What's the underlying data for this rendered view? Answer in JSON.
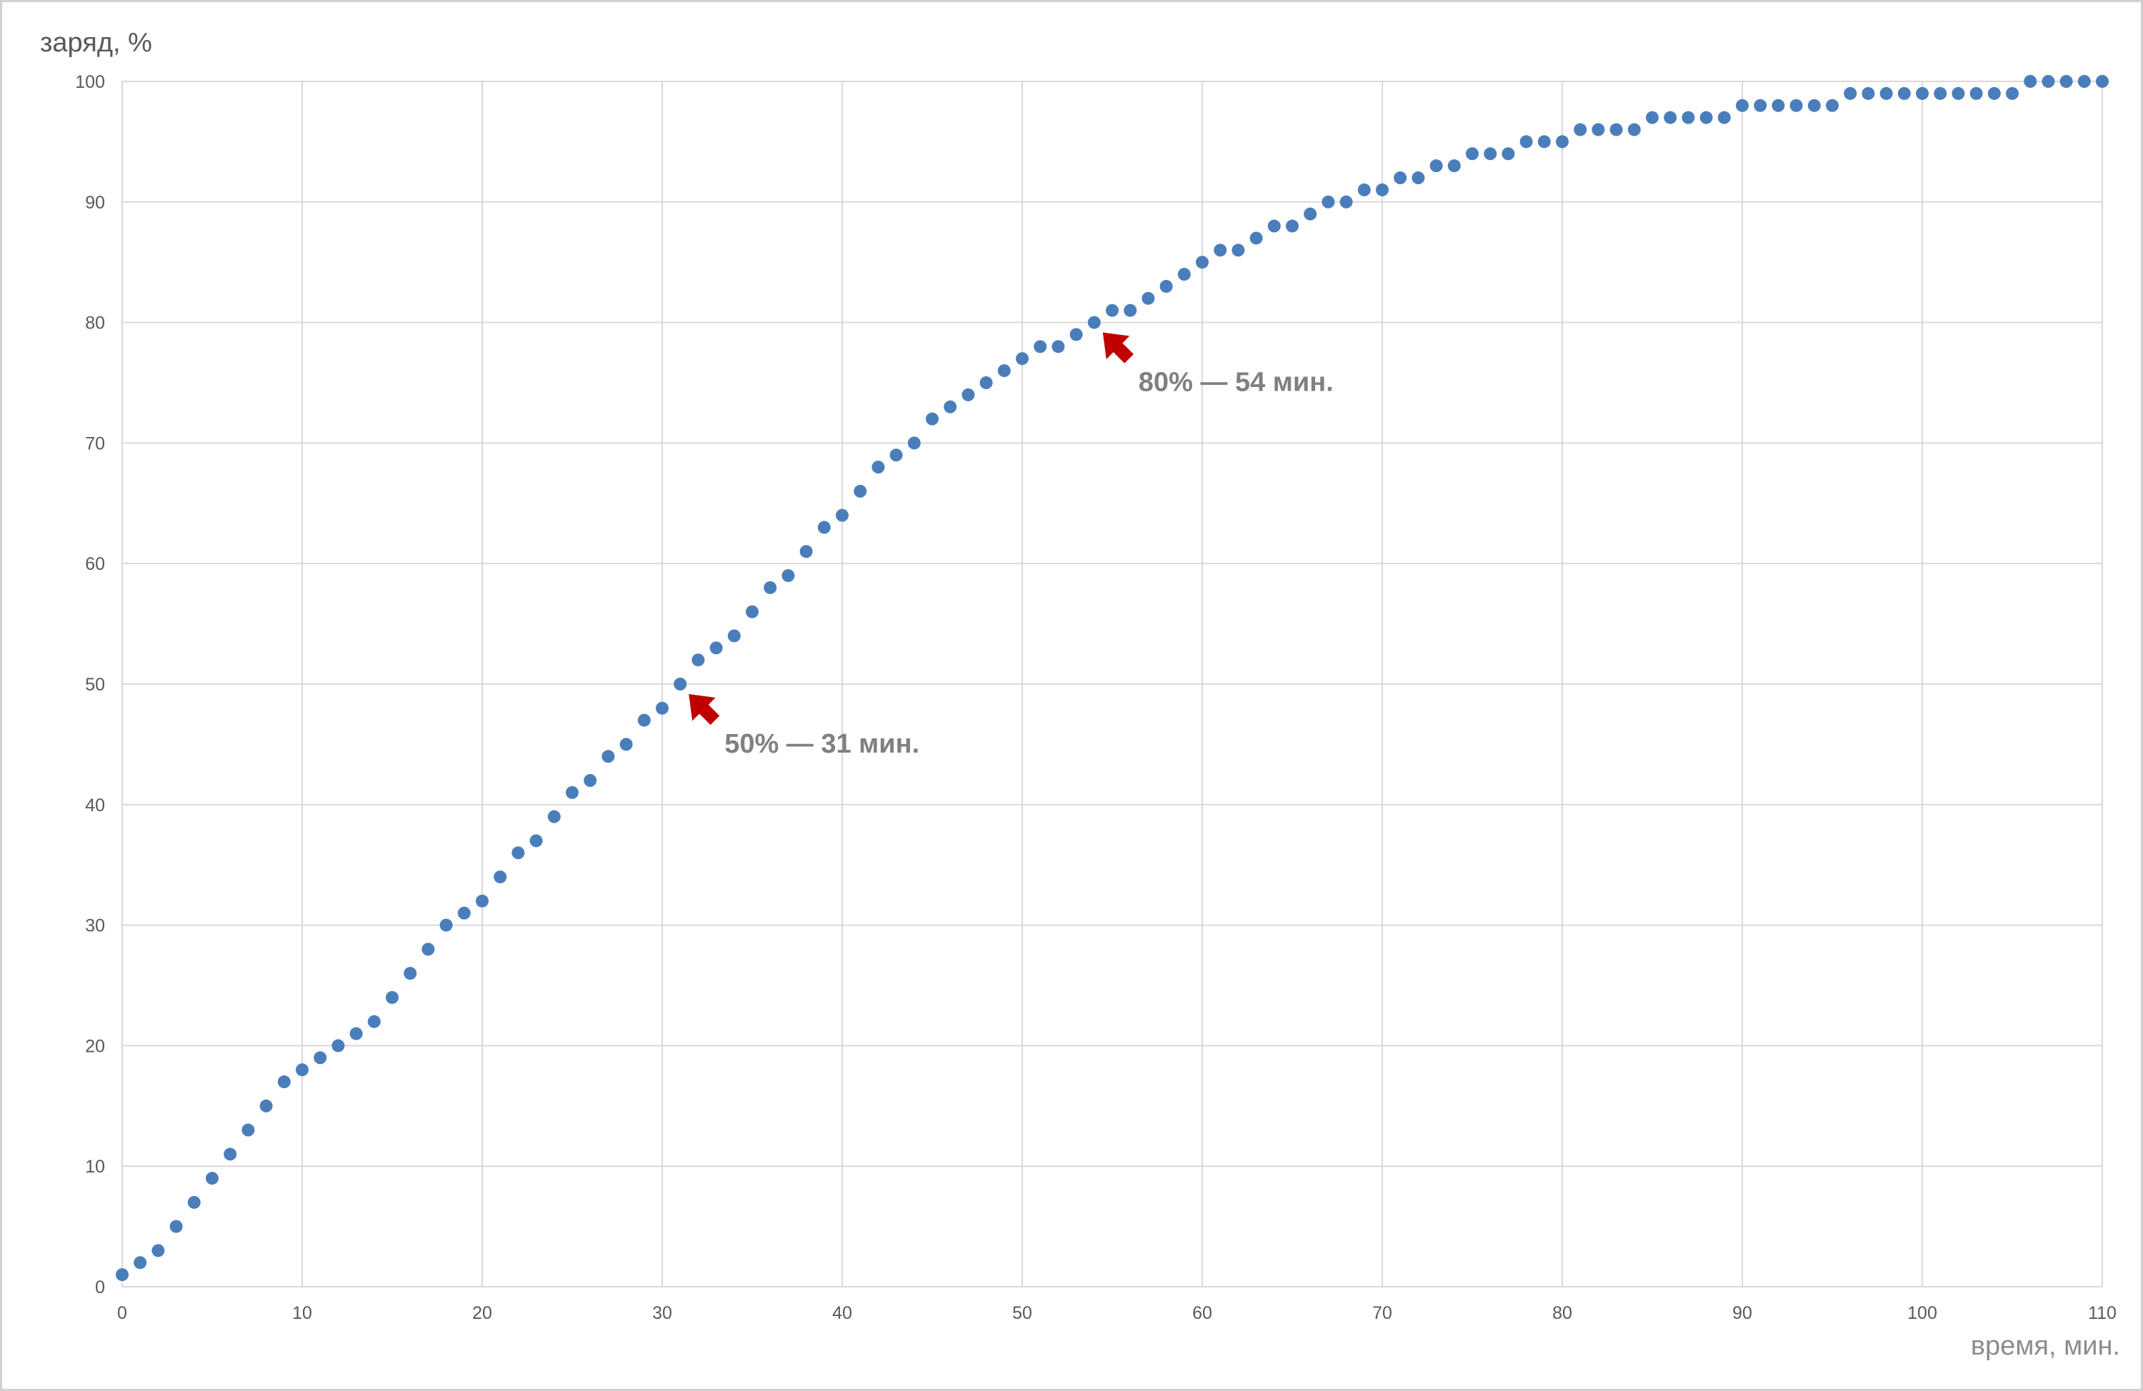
{
  "chart_data": {
    "type": "scatter",
    "ylabel": "заряд, %",
    "xlabel": "время, мин.",
    "xlim": [
      0,
      110
    ],
    "ylim": [
      0,
      100
    ],
    "x_ticks": [
      0,
      10,
      20,
      30,
      40,
      50,
      60,
      70,
      80,
      90,
      100,
      110
    ],
    "y_ticks": [
      0,
      10,
      20,
      30,
      40,
      50,
      60,
      70,
      80,
      90,
      100
    ],
    "grid": true,
    "legend": "none",
    "colors": {
      "points": "#4a7ebb",
      "arrows": "#c00000",
      "annotations": "#808080"
    },
    "series": [
      {
        "x": [
          0,
          1,
          2,
          3,
          4,
          5,
          6,
          7,
          8,
          9,
          10,
          11,
          12,
          13,
          14,
          15,
          16,
          17,
          18,
          19,
          20,
          21,
          22,
          23,
          24,
          25,
          26,
          27,
          28,
          29,
          30,
          31,
          32,
          33,
          34,
          35,
          36,
          37,
          38,
          39,
          40,
          41,
          42,
          43,
          44,
          45,
          46,
          47,
          48,
          49,
          50,
          51,
          52,
          53,
          54,
          55,
          56,
          57,
          58,
          59,
          60,
          61,
          62,
          63,
          64,
          65,
          66,
          67,
          68,
          69,
          70,
          71,
          72,
          73,
          74,
          75,
          76,
          77,
          78,
          79,
          80,
          81,
          82,
          83,
          84,
          85,
          86,
          87,
          88,
          89,
          90,
          91,
          92,
          93,
          94,
          95,
          96,
          97,
          98,
          99,
          100,
          101,
          102,
          103,
          104,
          105,
          106,
          107,
          108,
          109,
          110
        ],
        "y": [
          1,
          2,
          3,
          5,
          7,
          9,
          11,
          13,
          15,
          17,
          18,
          19,
          20,
          21,
          22,
          24,
          26,
          28,
          30,
          31,
          32,
          34,
          36,
          37,
          39,
          41,
          42,
          44,
          45,
          47,
          48,
          50,
          52,
          53,
          54,
          56,
          58,
          59,
          61,
          63,
          64,
          66,
          68,
          69,
          70,
          72,
          73,
          74,
          75,
          76,
          77,
          78,
          78,
          79,
          80,
          81,
          81,
          82,
          83,
          84,
          85,
          86,
          86,
          87,
          88,
          88,
          89,
          90,
          90,
          91,
          91,
          92,
          92,
          93,
          93,
          94,
          94,
          94,
          95,
          95,
          95,
          96,
          96,
          96,
          96,
          97,
          97,
          97,
          97,
          97,
          98,
          98,
          98,
          98,
          98,
          98,
          99,
          99,
          99,
          99,
          99,
          99,
          99,
          99,
          99,
          99,
          100,
          100,
          100,
          100,
          100
        ]
      }
    ],
    "annotations": [
      {
        "text": "50% — 31 мин.",
        "x": 31,
        "y": 50
      },
      {
        "text": "80% — 54 мин.",
        "x": 54,
        "y": 80
      }
    ]
  }
}
